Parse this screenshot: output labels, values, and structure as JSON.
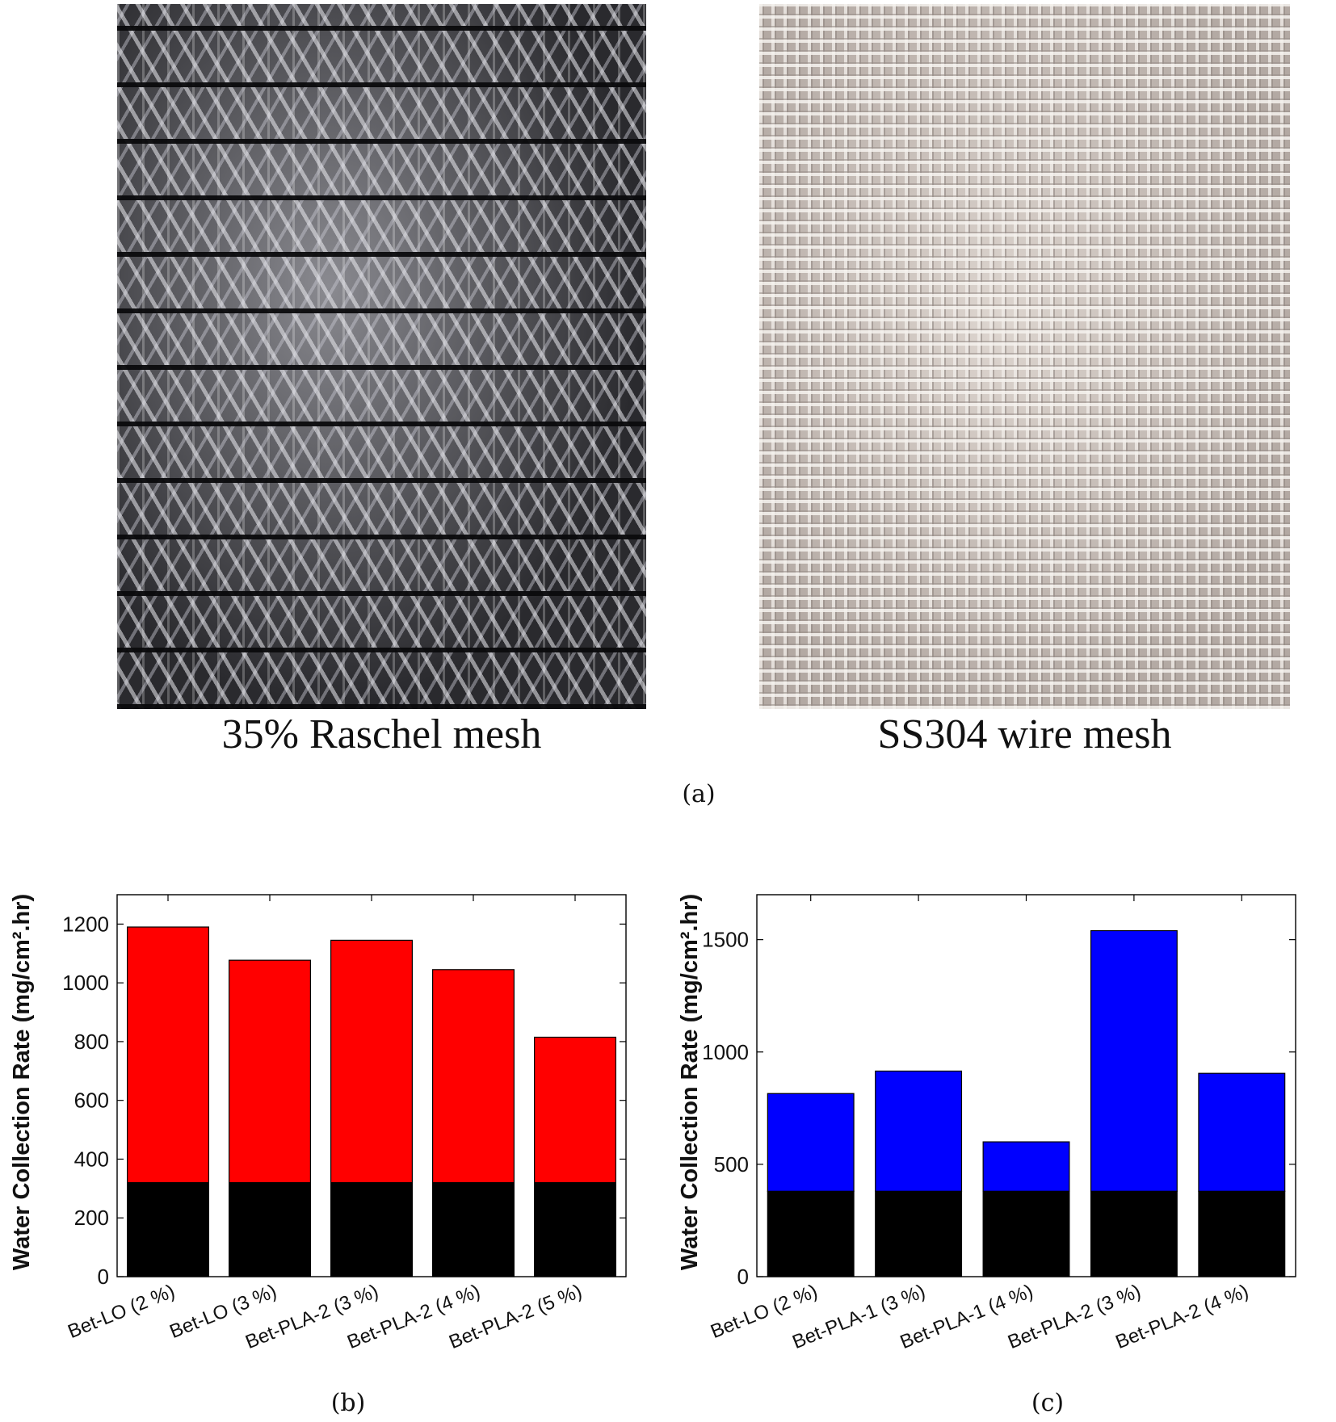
{
  "figure": {
    "photos": [
      {
        "caption": "35% Raschel mesh"
      },
      {
        "caption": "SS304 wire mesh"
      }
    ],
    "panel_labels": [
      "(a)",
      "(b)",
      "(c)"
    ]
  },
  "chart_data": [
    {
      "type": "bar",
      "stacked": true,
      "panel": "(b)",
      "title": "",
      "xlabel": "",
      "ylabel": "Water Collection Rate (mg/cm².hr)",
      "ylim": [
        0,
        1300
      ],
      "yticks": [
        0,
        200,
        400,
        600,
        800,
        1000,
        1200
      ],
      "categories": [
        "Bet-LO (2 %)",
        "Bet-LO (3 %)",
        "Bet-PLA-2 (3 %)",
        "Bet-PLA-2 (4 %)",
        "Bet-PLA-2 (5 %)"
      ],
      "series": [
        {
          "color": "#000000",
          "values": [
            320,
            320,
            320,
            320,
            320
          ]
        },
        {
          "color": "#ff0000",
          "values": [
            870,
            757,
            825,
            725,
            495
          ]
        }
      ],
      "totals": [
        1190,
        1077,
        1145,
        1045,
        815
      ],
      "grid": false,
      "legend": "none"
    },
    {
      "type": "bar",
      "stacked": true,
      "panel": "(c)",
      "title": "",
      "xlabel": "",
      "ylabel": "Water Collection Rate (mg/cm².hr)",
      "ylim": [
        0,
        1700
      ],
      "yticks": [
        0,
        500,
        1000,
        1500
      ],
      "categories": [
        "Bet-LO (2 %)",
        "Bet-PLA-1 (3 %)",
        "Bet-PLA-1 (4 %)",
        "Bet-PLA-2 (3 %)",
        "Bet-PLA-2 (4 %)"
      ],
      "series": [
        {
          "color": "#000000",
          "values": [
            380,
            380,
            380,
            380,
            380
          ]
        },
        {
          "color": "#0000ff",
          "values": [
            435,
            535,
            220,
            1160,
            525
          ]
        }
      ],
      "totals": [
        815,
        915,
        600,
        1540,
        905
      ],
      "grid": false,
      "legend": "none"
    }
  ]
}
